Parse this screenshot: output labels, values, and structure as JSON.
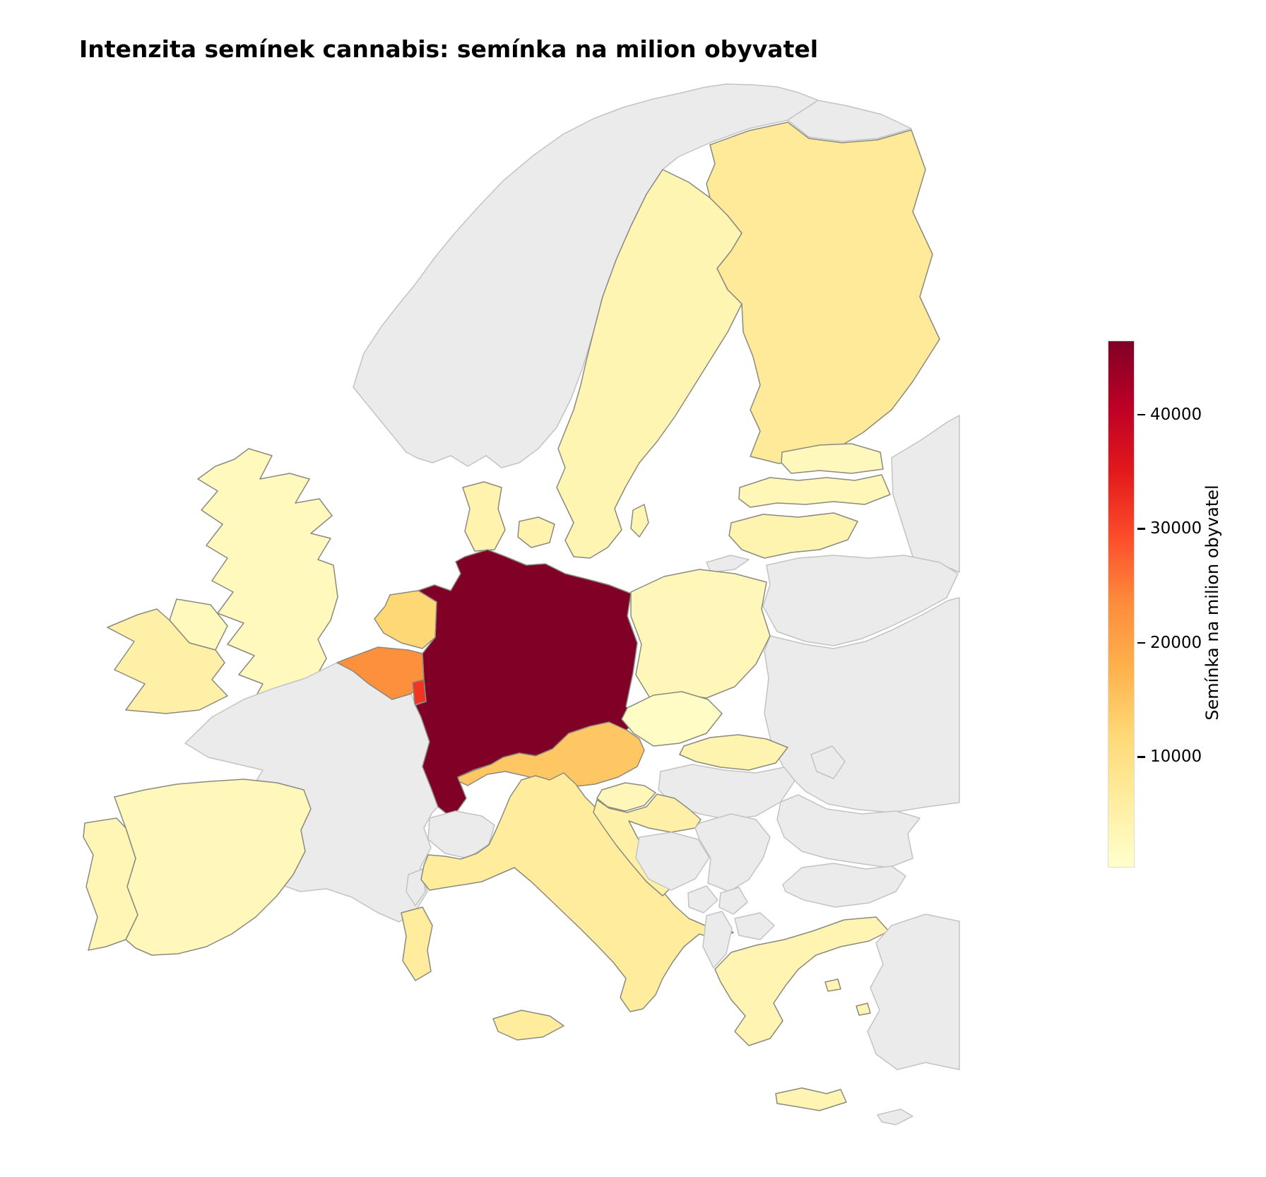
{
  "page": {
    "background": "#ffffff"
  },
  "chart_data": {
    "type": "heatmap",
    "subtype": "choropleth-map",
    "region": "Europe",
    "title": "Intenzita semínek cannabis: semínka na milion obyvatel",
    "legend_position": "right",
    "colorbar": {
      "label": "Semínka na milion obyvatel",
      "ticks": [
        10000,
        20000,
        30000,
        40000
      ],
      "vmin": 300,
      "vmax": 46500,
      "colormap": "YlOrRd",
      "colormap_stops": [
        {
          "t": 0.0,
          "color": "#ffffcc"
        },
        {
          "t": 0.125,
          "color": "#ffeda0"
        },
        {
          "t": 0.25,
          "color": "#fed976"
        },
        {
          "t": 0.375,
          "color": "#feb24c"
        },
        {
          "t": 0.5,
          "color": "#fd8d3c"
        },
        {
          "t": 0.625,
          "color": "#fc4e2a"
        },
        {
          "t": 0.75,
          "color": "#e31a1c"
        },
        {
          "t": 0.875,
          "color": "#bd0026"
        },
        {
          "t": 1.0,
          "color": "#800026"
        }
      ]
    },
    "no_data": {
      "fill": "#ebebeb",
      "stroke": "#c3c3c3"
    },
    "data_stroke": "#8a8a80",
    "unit": "semínka na milion obyvatel",
    "countries": [
      {
        "code": "DE",
        "name": "Germany",
        "value": 46500
      },
      {
        "code": "LU",
        "name": "Luxembourg",
        "value": 32000
      },
      {
        "code": "BE",
        "name": "Belgium",
        "value": 23000
      },
      {
        "code": "AT",
        "name": "Austria",
        "value": 14500
      },
      {
        "code": "NL",
        "name": "Netherlands",
        "value": 12000
      },
      {
        "code": "FI",
        "name": "Finland",
        "value": 7000
      },
      {
        "code": "IT",
        "name": "Italy",
        "value": 6500
      },
      {
        "code": "IE",
        "name": "Ireland",
        "value": 5200
      },
      {
        "code": "HR",
        "name": "Croatia",
        "value": 5000
      },
      {
        "code": "DK",
        "name": "Denmark",
        "value": 4200
      },
      {
        "code": "SK",
        "name": "Slovakia",
        "value": 4000
      },
      {
        "code": "LT",
        "name": "Lithuania",
        "value": 4000
      },
      {
        "code": "GR",
        "name": "Greece",
        "value": 3800
      },
      {
        "code": "SE",
        "name": "Sweden",
        "value": 3600
      },
      {
        "code": "PT",
        "name": "Portugal",
        "value": 3200
      },
      {
        "code": "LV",
        "name": "Latvia",
        "value": 3000
      },
      {
        "code": "SI",
        "name": "Slovenia",
        "value": 2800
      },
      {
        "code": "PL",
        "name": "Poland",
        "value": 2800
      },
      {
        "code": "ES",
        "name": "Spain",
        "value": 2600
      },
      {
        "code": "EE",
        "name": "Estonia",
        "value": 2400
      },
      {
        "code": "GB",
        "name": "United Kingdom",
        "value": 2200
      },
      {
        "code": "CZ",
        "name": "Czechia",
        "value": 1200
      },
      {
        "code": "FR",
        "name": "France",
        "value": null
      },
      {
        "code": "NO",
        "name": "Norway",
        "value": null
      },
      {
        "code": "CH",
        "name": "Switzerland",
        "value": null
      },
      {
        "code": "HU",
        "name": "Hungary",
        "value": null
      },
      {
        "code": "RO",
        "name": "Romania",
        "value": null
      },
      {
        "code": "BG",
        "name": "Bulgaria",
        "value": null
      },
      {
        "code": "RS",
        "name": "Serbia",
        "value": null
      },
      {
        "code": "BA",
        "name": "Bosnia and Herzegovina",
        "value": null
      },
      {
        "code": "ME",
        "name": "Montenegro",
        "value": null
      },
      {
        "code": "XK",
        "name": "Kosovo",
        "value": null
      },
      {
        "code": "AL",
        "name": "Albania",
        "value": null
      },
      {
        "code": "MK",
        "name": "North Macedonia",
        "value": null
      },
      {
        "code": "MD",
        "name": "Moldova",
        "value": null
      },
      {
        "code": "UA",
        "name": "Ukraine",
        "value": null
      },
      {
        "code": "BY",
        "name": "Belarus",
        "value": null
      },
      {
        "code": "RU",
        "name": "Russia",
        "value": null
      },
      {
        "code": "TR",
        "name": "Turkey",
        "value": null
      },
      {
        "code": "CY",
        "name": "Cyprus",
        "value": null
      }
    ]
  }
}
